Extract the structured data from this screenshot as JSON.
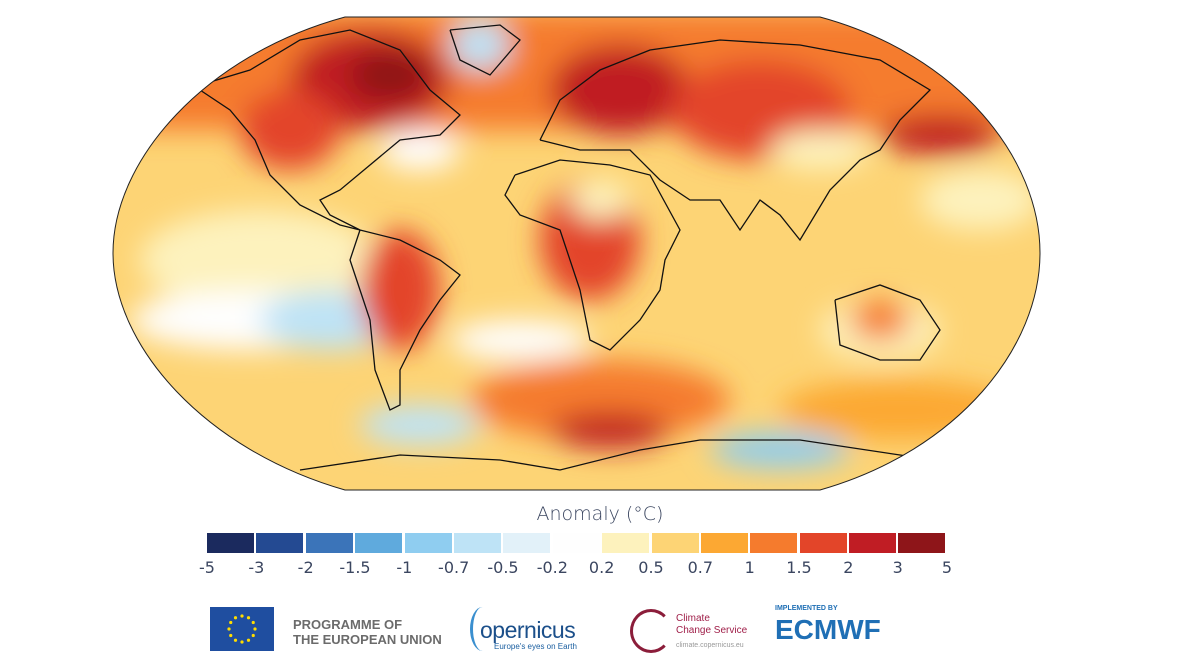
{
  "map": {
    "projection": "Robinson",
    "variable": "surface air temperature anomaly",
    "coastlines": true
  },
  "colorbar": {
    "title": "Anomaly (°C)",
    "tick_labels": [
      "-5",
      "-3",
      "-2",
      "-1.5",
      "-1",
      "-0.7",
      "-0.5",
      "-0.2",
      "0.2",
      "0.5",
      "0.7",
      "1",
      "1.5",
      "2",
      "3",
      "5"
    ],
    "colors": [
      "#1b2a5e",
      "#244a92",
      "#3b74b9",
      "#5faadd",
      "#8fcdf0",
      "#bee3f6",
      "#e2f1f9",
      "#fefefe",
      "#fdf2bd",
      "#fdd475",
      "#fca833",
      "#f57b2d",
      "#e34529",
      "#c01d24",
      "#8e1519"
    ]
  },
  "logos": {
    "eu": {
      "line1": "PROGRAMME OF",
      "line2": "THE EUROPEAN UNION"
    },
    "copernicus": {
      "name": "opernicus",
      "tagline": "Europe's eyes on Earth"
    },
    "c3s": {
      "line1": "Climate",
      "line2": "Change Service",
      "url": "climate.copernicus.eu"
    },
    "ecmwf": {
      "prefix": "IMPLEMENTED BY",
      "name": "ECMWF"
    }
  }
}
